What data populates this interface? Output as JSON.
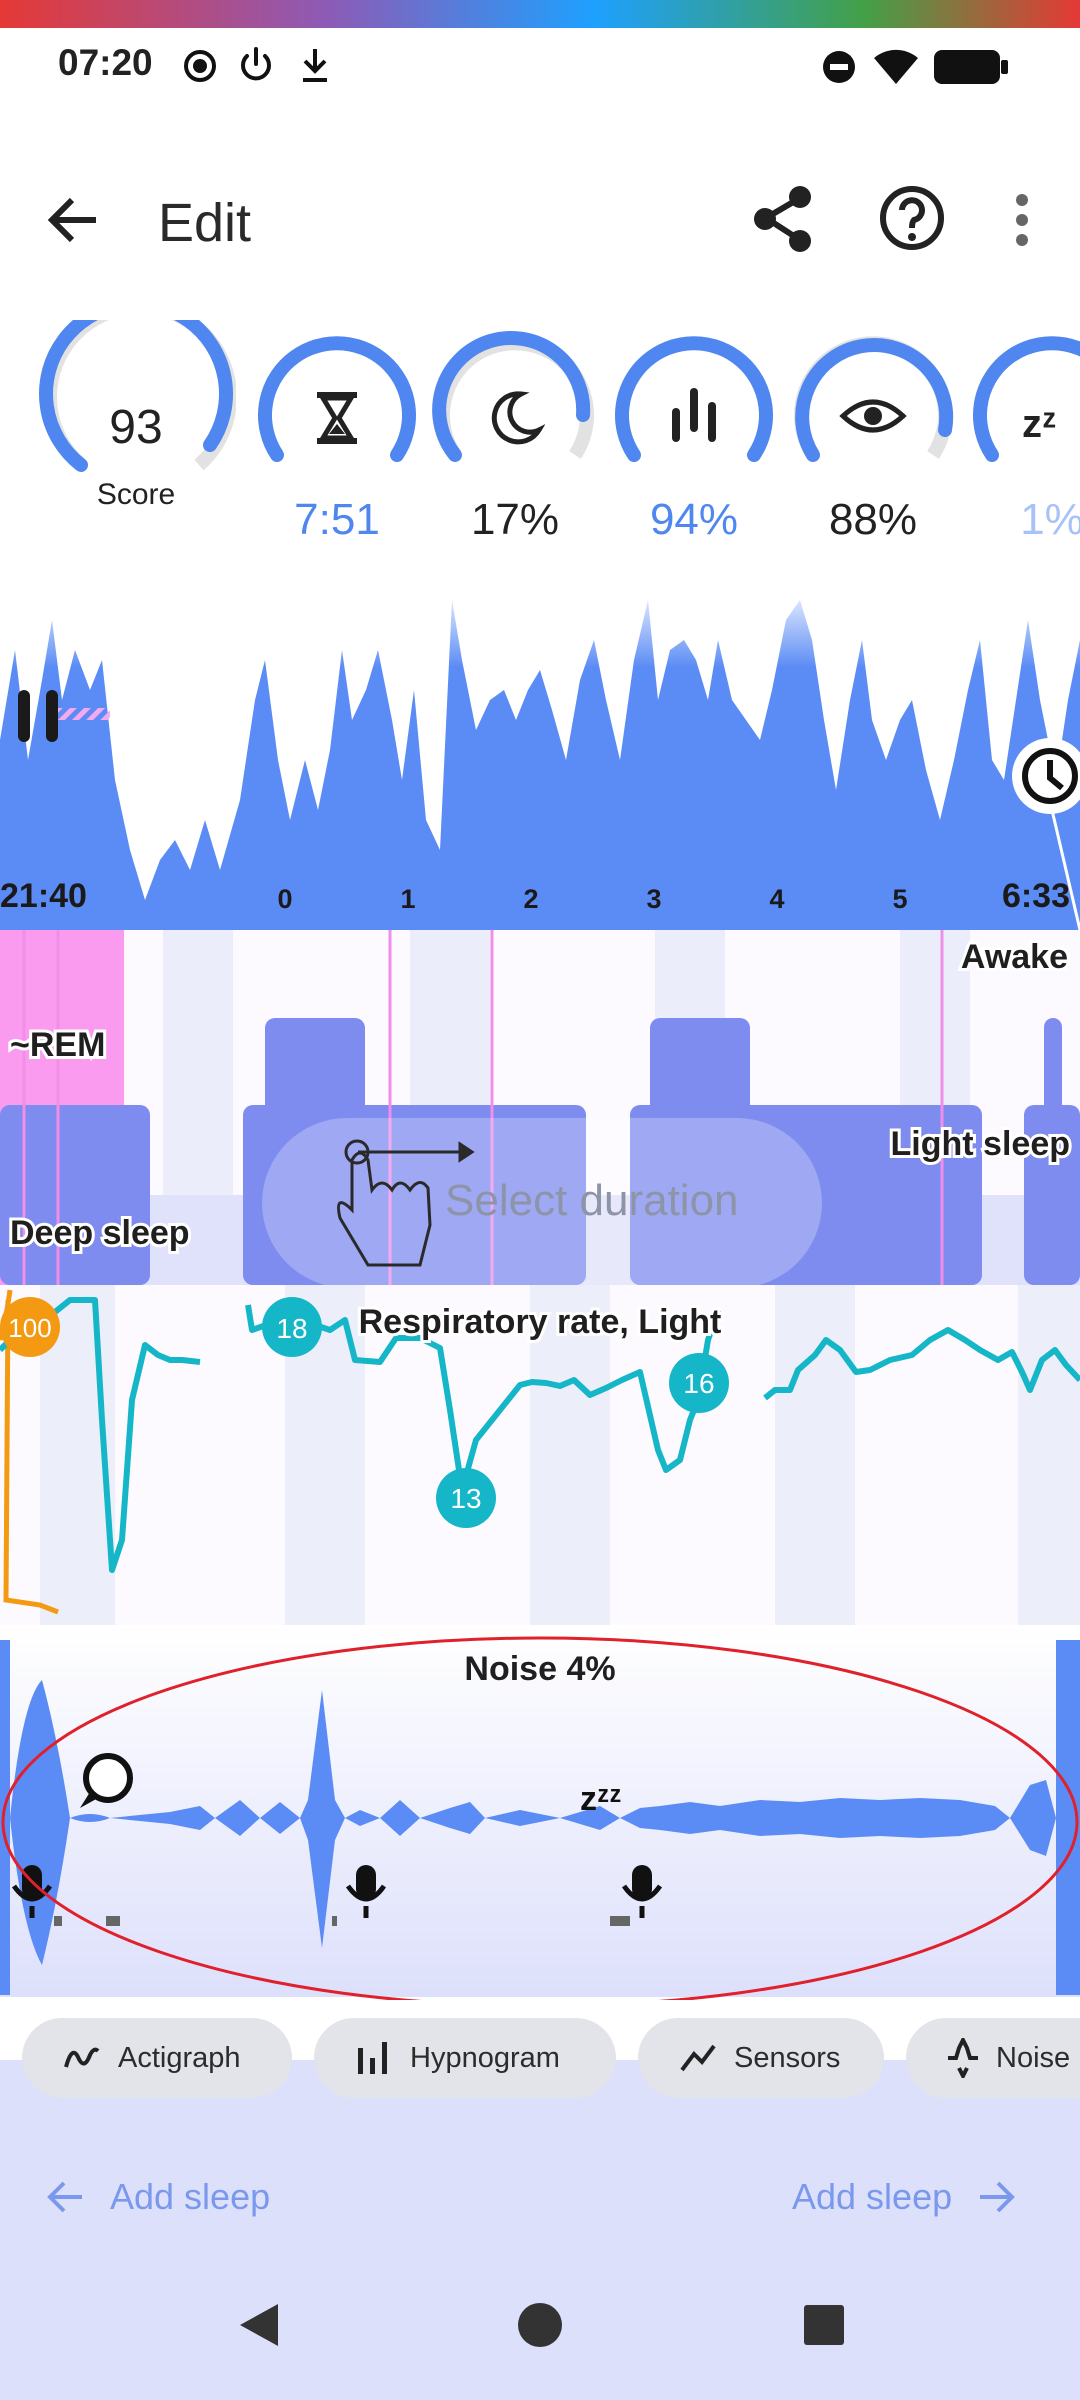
{
  "status_bar": {
    "time": "07:20",
    "left_icons": [
      "record-icon",
      "power-icon",
      "download-icon"
    ],
    "right_icons": [
      "dnd-icon",
      "wifi-icon",
      "battery-icon"
    ]
  },
  "app_bar": {
    "title": "Edit",
    "icons": [
      "back-arrow-icon",
      "share-icon",
      "help-icon",
      "more-vert-icon"
    ]
  },
  "gauges": [
    {
      "icon": "",
      "value": "93",
      "caption": "Score",
      "fill": 0.93,
      "accent": "#222222"
    },
    {
      "icon": "hourglass-icon",
      "value": "7:51",
      "fill": 1.0,
      "accent": "#4f86f0"
    },
    {
      "icon": "moon-icon",
      "value": "17%",
      "fill": 0.75,
      "accent": "#222222"
    },
    {
      "icon": "bars-icon",
      "value": "94%",
      "fill": 1.0,
      "accent": "#4f86f0"
    },
    {
      "icon": "eye-icon",
      "value": "88%",
      "fill": 0.85,
      "accent": "#222222"
    },
    {
      "icon": "zzz-icon",
      "value": "1%",
      "fill": 1.0,
      "accent": "#4f86f0"
    }
  ],
  "actigraph": {
    "start": "21:40",
    "end": "6:33",
    "hour_ticks": [
      "0",
      "1",
      "2",
      "3",
      "4",
      "5"
    ]
  },
  "hypnogram": {
    "labels": {
      "awake": "Awake",
      "rem": "~REM",
      "light": "Light sleep",
      "deep": "Deep sleep"
    },
    "hint": "Select duration"
  },
  "respiratory": {
    "title": "Respiratory rate, Light",
    "badges": [
      "18",
      "13",
      "16"
    ],
    "hr_badge": "100"
  },
  "noise": {
    "title": "Noise 4%"
  },
  "chips": [
    {
      "label": "Actigraph",
      "icon": "actigraph-icon"
    },
    {
      "label": "Hypnogram",
      "icon": "hypnogram-icon"
    },
    {
      "label": "Sensors",
      "icon": "sensors-icon"
    },
    {
      "label": "Noise",
      "icon": "noise-icon"
    }
  ],
  "footer": {
    "add_sleep_left": "Add sleep",
    "add_sleep_right": "Add sleep"
  },
  "colors": {
    "accent": "#4f86f0",
    "chart_blue": "#5b8cf5",
    "rem_pink": "#fb9bf0",
    "hypno_block": "#7e8bef",
    "teal": "#16b6c9",
    "orange": "#f39a12",
    "annotation_red": "#e0202a"
  }
}
